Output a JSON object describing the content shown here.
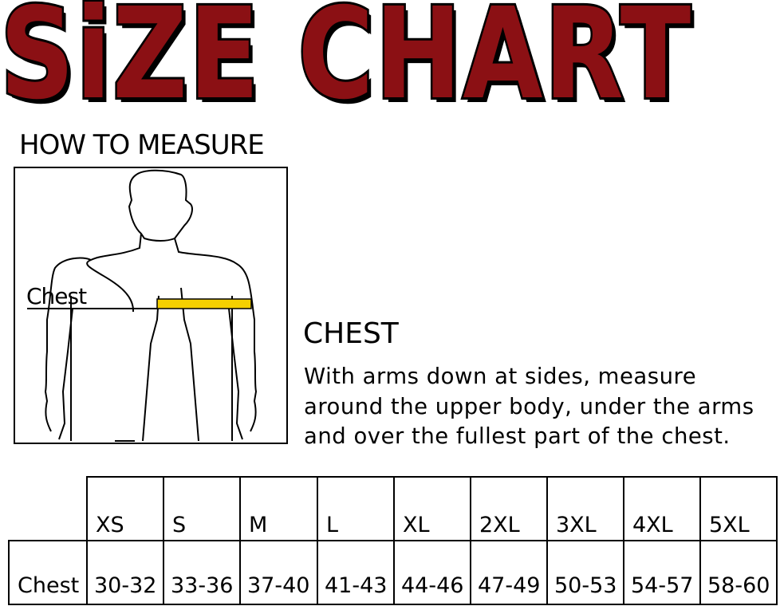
{
  "title": "SiZE CHART",
  "how_to_measure": "HOW TO MEASURE",
  "figure": {
    "chest_label": "Chest",
    "tape_color": "#f5d000"
  },
  "chest_heading": "CHEST",
  "chest_description": [
    "With arms down at sides, measure",
    "around the upper body, under the arms",
    "and over the fullest part of the chest."
  ],
  "table": {
    "sizes": [
      "XS",
      "S",
      "M",
      "L",
      "XL",
      "2XL",
      "3XL",
      "4XL",
      "5XL"
    ],
    "row_label": "Chest",
    "values": [
      "30-32",
      "33-36",
      "37-40",
      "41-43",
      "44-46",
      "47-49",
      "50-53",
      "54-57",
      "58-60"
    ]
  },
  "colors": {
    "title": "#8b1014"
  }
}
